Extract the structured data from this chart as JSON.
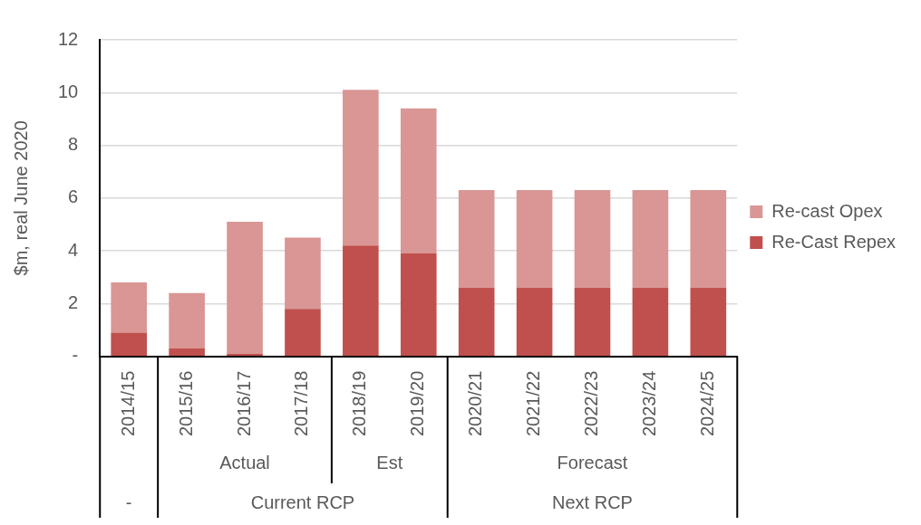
{
  "chart_data": {
    "type": "bar",
    "ylabel": "$m, real June 2020",
    "categories": [
      "2014/15",
      "2015/16",
      "2016/17",
      "2017/18",
      "2018/19",
      "2019/20",
      "2020/21",
      "2021/22",
      "2022/23",
      "2023/24",
      "2024/25"
    ],
    "series": [
      {
        "name": "Re-Cast Repex",
        "color": "#c0504d",
        "values": [
          0.9,
          0.3,
          0.1,
          1.8,
          4.2,
          3.9,
          2.6,
          2.6,
          2.6,
          2.6,
          2.6
        ]
      },
      {
        "name": "Re-cast Opex",
        "color": "#d99694",
        "values": [
          1.9,
          2.1,
          5.0,
          2.7,
          5.9,
          5.5,
          3.7,
          3.7,
          3.7,
          3.7,
          3.7
        ]
      }
    ],
    "stacked": true,
    "ylim": [
      0,
      12
    ],
    "yticks": [
      {
        "value": 0,
        "label": "-"
      },
      2,
      4,
      6,
      8,
      10,
      12
    ],
    "grid": "y",
    "legend": "right",
    "annotations": [
      "Actual",
      "Est",
      "Forecast",
      "-",
      "Current RCP",
      "Next RCP"
    ]
  }
}
